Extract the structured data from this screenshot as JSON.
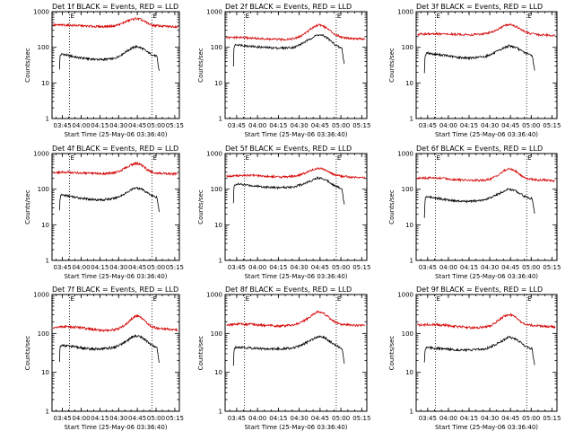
{
  "chart_data": {
    "type": "line",
    "layout": "3x3 grid",
    "scale": "log",
    "xlabel": "Start Time (25-May-06 03:36:40)",
    "ylabel": "Counts/sec",
    "x_tick_labels": [
      "03:45",
      "04:00",
      "04:15",
      "04:30",
      "04:45",
      "05:00",
      "05:15"
    ],
    "x_tick_minutes": [
      8.33,
      23.33,
      38.33,
      53.33,
      68.33,
      83.33,
      98.33
    ],
    "xlim": [
      0,
      102
    ],
    "ylim": [
      1,
      1000
    ],
    "y_tick_labels": [
      "1",
      "10",
      "100",
      "1000"
    ],
    "y_tick_values": [
      1,
      10,
      100,
      1000
    ],
    "vertical_markers_minutes": [
      14,
      80
    ],
    "colors": {
      "events": "#000000",
      "lld": "#d40000"
    },
    "panels": [
      {
        "title": "Det 1f BLACK = Events, RED = LLD",
        "marker_label": "E",
        "series": [
          {
            "name": "Events",
            "x": [
              6,
              6.5,
              8,
              12,
              20,
              30,
              40,
              50,
              55,
              60,
              64,
              67,
              70,
              73,
              76,
              79,
              82,
              84,
              85,
              86
            ],
            "values": [
              25,
              60,
              65,
              60,
              52,
              47,
              45,
              48,
              60,
              78,
              95,
              105,
              100,
              90,
              75,
              65,
              58,
              55,
              30,
              20
            ]
          },
          {
            "name": "LLD",
            "x": [
              1,
              10,
              20,
              30,
              40,
              50,
              55,
              60,
              64,
              67,
              70,
              73,
              76,
              80,
              85,
              90,
              95,
              101
            ],
            "values": [
              420,
              420,
              410,
              390,
              380,
              400,
              450,
              540,
              610,
              640,
              620,
              560,
              480,
              420,
              400,
              390,
              385,
              380
            ]
          }
        ]
      },
      {
        "title": "Det 2f BLACK = Events, RED = LLD",
        "marker_label": "E",
        "series": [
          {
            "name": "Events",
            "x": [
              6,
              6.5,
              8,
              12,
              20,
              30,
              40,
              50,
              55,
              60,
              64,
              67,
              70,
              73,
              76,
              79,
              82,
              84,
              85,
              86
            ],
            "values": [
              30,
              110,
              120,
              115,
              105,
              98,
              95,
              100,
              125,
              160,
              200,
              225,
              215,
              190,
              150,
              120,
              100,
              95,
              50,
              30
            ]
          },
          {
            "name": "LLD",
            "x": [
              1,
              10,
              20,
              30,
              40,
              50,
              55,
              60,
              64,
              67,
              70,
              73,
              76,
              80,
              85,
              90,
              95,
              101
            ],
            "values": [
              185,
              190,
              180,
              170,
              165,
              175,
              210,
              290,
              380,
              430,
              410,
              350,
              280,
              220,
              190,
              180,
              175,
              170
            ]
          }
        ]
      },
      {
        "title": "Det 3f BLACK = Events, RED = LLD",
        "marker_label": "E",
        "series": [
          {
            "name": "Events",
            "x": [
              6,
              6.5,
              8,
              12,
              20,
              30,
              40,
              50,
              55,
              60,
              64,
              67,
              70,
              73,
              76,
              79,
              82,
              84,
              85,
              86
            ],
            "values": [
              20,
              60,
              70,
              65,
              60,
              52,
              50,
              55,
              65,
              80,
              98,
              110,
              105,
              95,
              80,
              70,
              62,
              60,
              35,
              20
            ]
          },
          {
            "name": "LLD",
            "x": [
              1,
              10,
              20,
              30,
              40,
              50,
              55,
              60,
              64,
              67,
              70,
              73,
              76,
              80,
              85,
              90,
              95,
              101
            ],
            "values": [
              230,
              240,
              235,
              230,
              225,
              240,
              270,
              330,
              400,
              440,
              420,
              370,
              310,
              260,
              235,
              225,
              220,
              215
            ]
          }
        ]
      },
      {
        "title": "Det 4f BLACK = Events, RED = LLD",
        "marker_label": "E",
        "series": [
          {
            "name": "Events",
            "x": [
              6,
              6.5,
              8,
              12,
              20,
              30,
              40,
              50,
              55,
              60,
              64,
              67,
              70,
              73,
              76,
              79,
              82,
              84,
              85,
              86
            ],
            "values": [
              25,
              60,
              70,
              65,
              58,
              52,
              50,
              55,
              65,
              80,
              98,
              110,
              105,
              95,
              80,
              70,
              62,
              60,
              35,
              20
            ]
          },
          {
            "name": "LLD",
            "x": [
              1,
              10,
              20,
              30,
              40,
              50,
              55,
              60,
              64,
              67,
              70,
              73,
              76,
              80,
              85,
              90,
              95,
              101
            ],
            "values": [
              290,
              300,
              290,
              275,
              270,
              290,
              330,
              410,
              490,
              530,
              510,
              440,
              360,
              300,
              280,
              275,
              270,
              270
            ]
          }
        ]
      },
      {
        "title": "Det 5f BLACK = Events, RED = LLD",
        "marker_label": "E",
        "series": [
          {
            "name": "Events",
            "x": [
              6,
              6.5,
              8,
              12,
              20,
              30,
              40,
              50,
              55,
              60,
              64,
              67,
              70,
              73,
              76,
              79,
              82,
              84,
              85,
              86
            ],
            "values": [
              40,
              130,
              140,
              135,
              125,
              115,
              110,
              118,
              135,
              160,
              190,
              210,
              200,
              180,
              150,
              125,
              110,
              105,
              55,
              35
            ]
          },
          {
            "name": "LLD",
            "x": [
              1,
              10,
              20,
              30,
              40,
              50,
              55,
              60,
              64,
              67,
              70,
              73,
              76,
              80,
              85,
              90,
              95,
              101
            ],
            "values": [
              230,
              240,
              245,
              230,
              220,
              230,
              260,
              310,
              360,
              390,
              375,
              330,
              280,
              245,
              230,
              220,
              215,
              210
            ]
          }
        ]
      },
      {
        "title": "Det 6f BLACK = Events, RED = LLD",
        "marker_label": "E",
        "series": [
          {
            "name": "Events",
            "x": [
              6,
              6.5,
              8,
              12,
              20,
              30,
              40,
              50,
              55,
              60,
              64,
              67,
              70,
              73,
              76,
              79,
              82,
              84,
              85,
              86
            ],
            "values": [
              15,
              55,
              62,
              58,
              52,
              46,
              45,
              50,
              60,
              75,
              90,
              100,
              95,
              85,
              72,
              62,
              56,
              54,
              30,
              18
            ]
          },
          {
            "name": "LLD",
            "x": [
              1,
              10,
              20,
              30,
              40,
              50,
              55,
              60,
              64,
              67,
              70,
              73,
              76,
              80,
              85,
              90,
              95,
              101
            ],
            "values": [
              200,
              210,
              200,
              185,
              175,
              180,
              200,
              260,
              330,
              370,
              355,
              300,
              240,
              200,
              185,
              180,
              178,
              175
            ]
          }
        ]
      },
      {
        "title": "Det 7f BLACK = Events, RED = LLD",
        "marker_label": "E",
        "series": [
          {
            "name": "Events",
            "x": [
              6,
              6.5,
              8,
              12,
              20,
              30,
              40,
              50,
              55,
              60,
              64,
              67,
              70,
              73,
              76,
              79,
              82,
              84,
              85,
              86
            ],
            "values": [
              18,
              45,
              50,
              48,
              44,
              40,
              40,
              44,
              52,
              65,
              78,
              88,
              85,
              75,
              62,
              52,
              46,
              44,
              25,
              15
            ]
          },
          {
            "name": "LLD",
            "x": [
              1,
              10,
              20,
              30,
              40,
              50,
              55,
              60,
              64,
              67,
              70,
              73,
              76,
              80,
              85,
              90,
              95,
              101
            ],
            "values": [
              140,
              150,
              145,
              130,
              120,
              125,
              140,
              180,
              240,
              280,
              270,
              230,
              180,
              150,
              135,
              130,
              128,
              125
            ]
          }
        ]
      },
      {
        "title": "Det 8f BLACK = Events, RED = LLD",
        "marker_label": "E",
        "series": [
          {
            "name": "Events",
            "x": [
              6,
              6.5,
              8,
              12,
              20,
              30,
              40,
              50,
              55,
              60,
              64,
              67,
              70,
              73,
              76,
              79,
              82,
              84,
              85,
              86
            ],
            "values": [
              15,
              40,
              45,
              44,
              42,
              40,
              40,
              43,
              50,
              62,
              75,
              85,
              82,
              72,
              60,
              50,
              45,
              43,
              25,
              15
            ]
          },
          {
            "name": "LLD",
            "x": [
              1,
              10,
              20,
              30,
              40,
              50,
              55,
              60,
              64,
              67,
              70,
              73,
              76,
              80,
              85,
              90,
              95,
              101
            ],
            "values": [
              170,
              175,
              170,
              160,
              155,
              165,
              190,
              250,
              320,
              360,
              345,
              290,
              230,
              190,
              170,
              165,
              160,
              158
            ]
          }
        ]
      },
      {
        "title": "Det 9f BLACK = Events, RED = LLD",
        "marker_label": "E",
        "series": [
          {
            "name": "Events",
            "x": [
              6,
              6.5,
              8,
              12,
              20,
              30,
              40,
              50,
              55,
              60,
              64,
              67,
              70,
              73,
              76,
              79,
              82,
              84,
              85,
              86
            ],
            "values": [
              18,
              40,
              45,
              42,
              40,
              38,
              37,
              40,
              47,
              58,
              70,
              80,
              77,
              68,
              57,
              48,
              42,
              40,
              22,
              14
            ]
          },
          {
            "name": "LLD",
            "x": [
              1,
              10,
              20,
              30,
              40,
              50,
              55,
              60,
              64,
              67,
              70,
              73,
              76,
              80,
              85,
              90,
              95,
              101
            ],
            "values": [
              165,
              170,
              165,
              150,
              140,
              145,
              165,
              220,
              280,
              310,
              295,
              250,
              200,
              170,
              160,
              155,
              150,
              148
            ]
          }
        ]
      }
    ]
  }
}
